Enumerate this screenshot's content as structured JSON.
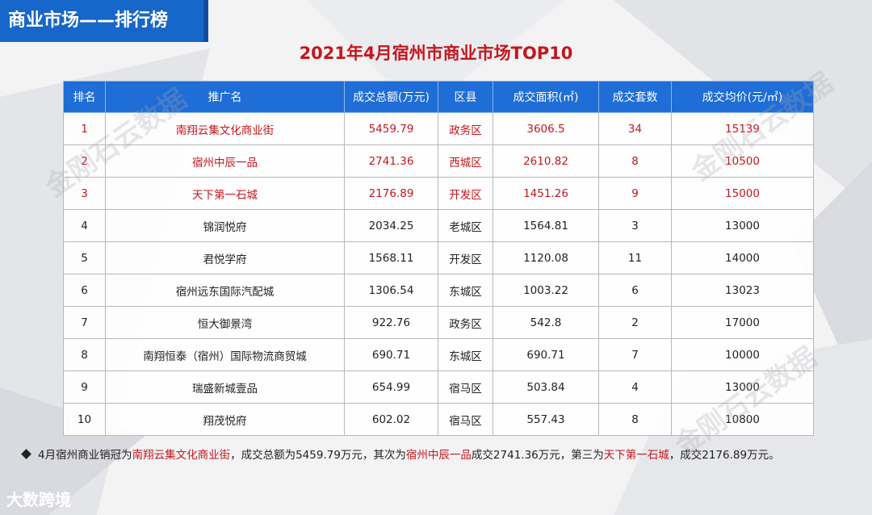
{
  "header": {
    "section_title": "商业市场——排行榜"
  },
  "title": "2021年4月宿州市商业市场TOP10",
  "table": {
    "columns": [
      "排名",
      "推广名",
      "成交总额(万元)",
      "区县",
      "成交面积(㎡)",
      "成交套数",
      "成交均价(元/㎡)"
    ],
    "rows": [
      [
        "1",
        "南翔云集文化商业街",
        "5459.79",
        "政务区",
        "3606.5",
        "34",
        "15139"
      ],
      [
        "2",
        "宿州中辰一品",
        "2741.36",
        "西城区",
        "2610.82",
        "8",
        "10500"
      ],
      [
        "3",
        "天下第一石城",
        "2176.89",
        "开发区",
        "1451.26",
        "9",
        "15000"
      ],
      [
        "4",
        "锦润悦府",
        "2034.25",
        "老城区",
        "1564.81",
        "3",
        "13000"
      ],
      [
        "5",
        "君悦学府",
        "1568.11",
        "开发区",
        "1120.08",
        "11",
        "14000"
      ],
      [
        "6",
        "宿州远东国际汽配城",
        "1306.54",
        "东城区",
        "1003.22",
        "6",
        "13023"
      ],
      [
        "7",
        "恒大御景湾",
        "922.76",
        "政务区",
        "542.8",
        "2",
        "17000"
      ],
      [
        "8",
        "南翔恒泰（宿州）国际物流商贸城",
        "690.71",
        "东城区",
        "690.71",
        "7",
        "10000"
      ],
      [
        "9",
        "瑞盛新城壹品",
        "654.99",
        "宿马区",
        "503.84",
        "4",
        "13000"
      ],
      [
        "10",
        "翔茂悦府",
        "602.02",
        "宿马区",
        "557.43",
        "8",
        "10800"
      ]
    ]
  },
  "footnote": {
    "p1": "4月宿州商业销冠为",
    "r1": "南翔云集文化商业街",
    "p2": "，成交总额为5459.79万元，其次为",
    "r2": "宿州中辰一品",
    "p3": "成交2741.36万元，第三为",
    "r3": "天下第一石城",
    "p4": "，成交2176.89万元。"
  },
  "watermark": "金刚石云数据",
  "brand": "大数跨境",
  "colors": {
    "header_blue": "#1766c9",
    "accent_red": "#c4161c",
    "table_head": "#1f6dd6"
  }
}
